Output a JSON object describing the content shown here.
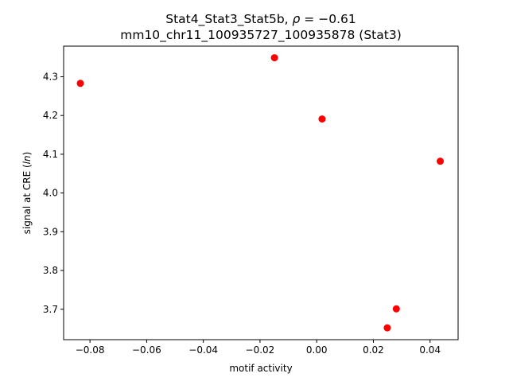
{
  "chart_data": {
    "type": "scatter",
    "title_line1_prefix": "Stat4_Stat3_Stat5b, ",
    "title_rho_symbol": "ρ",
    "title_rho_value": " = −0.61",
    "title_line2": "mm10_chr11_100935727_100935878 (Stat3)",
    "xlabel": "motif activity",
    "ylabel_prefix": "signal at CRE (",
    "ylabel_italic": "ln",
    "ylabel_suffix": ")",
    "xlim": [
      -0.0893,
      0.0499
    ],
    "ylim": [
      3.6215,
      4.379
    ],
    "x_ticks": [
      -0.08,
      -0.06,
      -0.04,
      -0.02,
      0.0,
      0.02,
      0.04
    ],
    "x_tick_labels": [
      "−0.08",
      "−0.06",
      "−0.04",
      "−0.02",
      "0.00",
      "0.02",
      "0.04"
    ],
    "y_ticks": [
      3.7,
      3.8,
      3.9,
      4.0,
      4.1,
      4.2,
      4.3
    ],
    "y_tick_labels": [
      "3.7",
      "3.8",
      "3.9",
      "4.0",
      "4.1",
      "4.2",
      "4.3"
    ],
    "grid": false,
    "marker_color": "#ff0000",
    "points": [
      {
        "x": -0.0834,
        "y": 4.283
      },
      {
        "x": -0.0149,
        "y": 4.349
      },
      {
        "x": 0.0019,
        "y": 4.191
      },
      {
        "x": 0.0436,
        "y": 4.082
      },
      {
        "x": 0.0281,
        "y": 3.701
      },
      {
        "x": 0.0249,
        "y": 3.652
      }
    ]
  }
}
